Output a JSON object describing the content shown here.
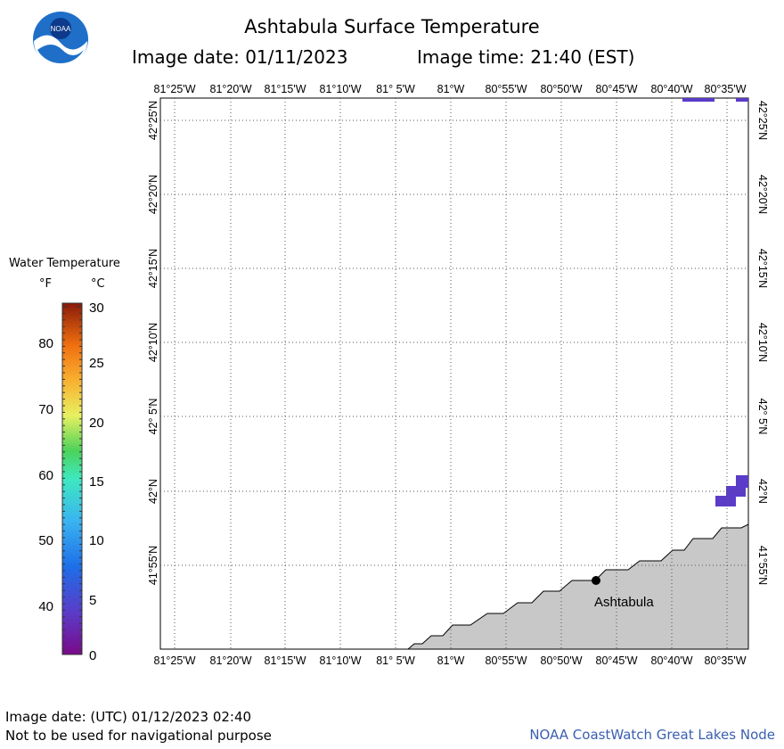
{
  "header": {
    "title": "Ashtabula Surface Temperature",
    "image_date": "Image date: 01/11/2023",
    "image_time": "Image time: 21:40 (EST)",
    "logo_text": "NOAA"
  },
  "map": {
    "longitude_labels": [
      "81°25'W",
      "81°20'W",
      "81°15'W",
      "81°10'W",
      "81° 5'W",
      "81°W",
      "80°55'W",
      "80°50'W",
      "80°45'W",
      "80°40'W",
      "80°35'W"
    ],
    "latitude_labels": [
      "42°25'N",
      "42°20'N",
      "42°15'N",
      "42°10'N",
      "42° 5'N",
      "42°N",
      "41°55'N"
    ],
    "city_label": "Ashtabula",
    "land_color": "#c8c8c8",
    "grid_style": "dotted",
    "cold_water_color": "#5a3cc8"
  },
  "legend": {
    "title": "Water Temperature",
    "unit_f": "°F",
    "unit_c": "°C",
    "f_labels": [
      "80",
      "70",
      "60",
      "50",
      "40"
    ],
    "c_labels": [
      "30",
      "25",
      "20",
      "15",
      "10",
      "5",
      "0"
    ]
  },
  "footer": {
    "utc_date": "Image date: (UTC) 01/12/2023  02:40",
    "disclaimer": "Not to be used for navigational purpose",
    "credit": "NOAA CoastWatch Great Lakes Node"
  }
}
